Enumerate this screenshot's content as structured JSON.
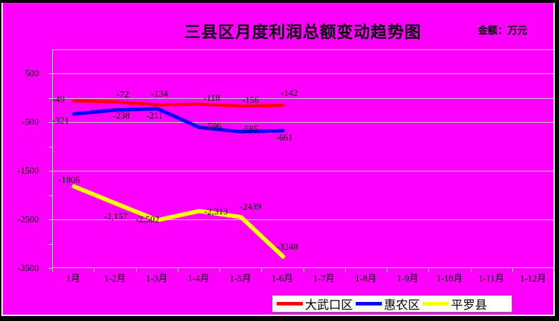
{
  "title": "三县区月度利润总额变动趋势图",
  "unit_label": "金额：万元",
  "colors": {
    "background": "#ff00ff",
    "gridline": "#c9c9c9",
    "text": "#000000",
    "legend_background": "#ffffff"
  },
  "chart_data": {
    "type": "line",
    "title": "三县区月度利润总额变动趋势图",
    "unit": "金额：万元",
    "categories": [
      "1月",
      "1-2月",
      "1-3月",
      "1-4月",
      "1-5月",
      "1-6月",
      "1-7月",
      "1-8月",
      "1-9月",
      "1-10月",
      "1-11月",
      "1-12月"
    ],
    "series": [
      {
        "name": "大武口区",
        "color": "#ff0000",
        "values": [
          -49,
          -72,
          -134,
          -118,
          -156,
          -142
        ],
        "labels": [
          "-49",
          "-72",
          "-134",
          "-118",
          "-156",
          "-142"
        ]
      },
      {
        "name": "惠农区",
        "color": "#0000ff",
        "values": [
          -321,
          -238,
          -211,
          -596,
          -685,
          -661
        ],
        "labels": [
          "-321",
          "-238",
          "-211",
          "-596",
          "-685",
          "-661"
        ]
      },
      {
        "name": "平罗县",
        "color": "#ffff00",
        "values": [
          -1806,
          -2157,
          -2502,
          -2313,
          -2439,
          -3248
        ],
        "labels": [
          "-1806",
          "-2,157",
          "-2,502",
          "-2,313",
          "-2439",
          "-3248"
        ]
      }
    ],
    "y_ticks": [
      {
        "label": "500",
        "value": 500
      },
      {
        "label": "-500",
        "value": -500
      },
      {
        "label": "-1500",
        "value": -1500
      },
      {
        "label": "-2500",
        "value": -2500
      },
      {
        "label": "-3500",
        "value": -3500
      }
    ],
    "ylim": [
      -3500,
      1000
    ],
    "grid": true,
    "legend_position": "bottom-right"
  }
}
